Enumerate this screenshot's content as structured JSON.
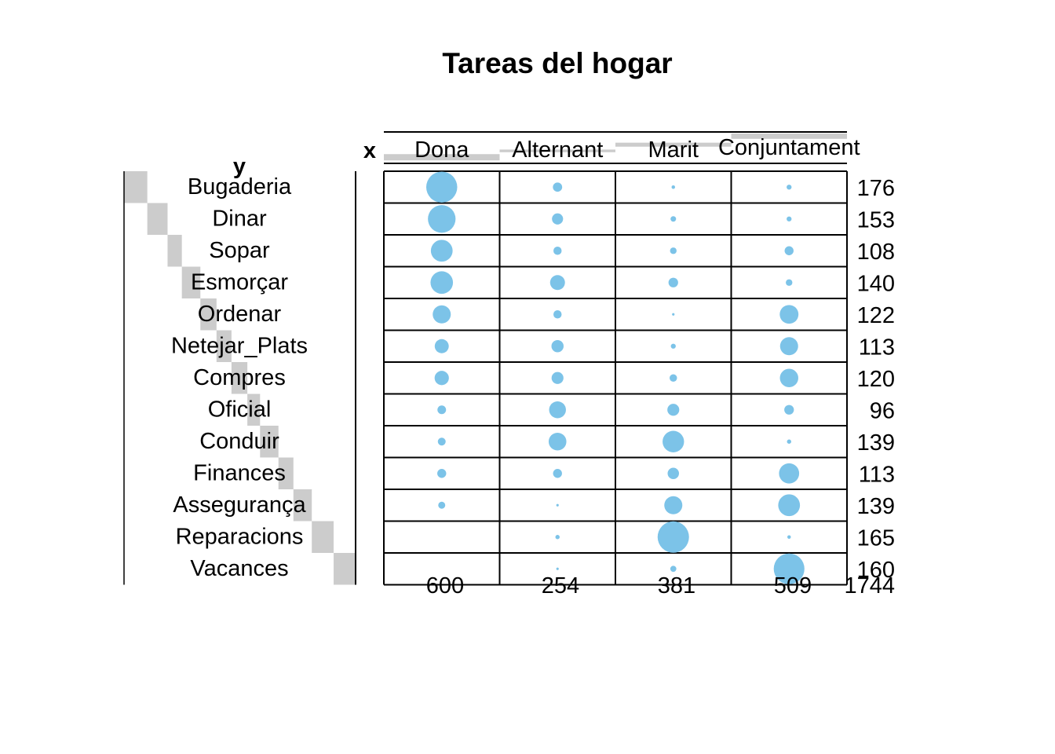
{
  "chart_data": {
    "type": "balloon",
    "title": "Tareas del hogar",
    "xlabel": "x",
    "ylabel": "y",
    "columns": [
      "Dona",
      "Alternant",
      "Marit",
      "Conjuntament"
    ],
    "rows": [
      "Bugaderia",
      "Dinar",
      "Sopar",
      "Esmorçar",
      "Ordenar",
      "Netejar_Plats",
      "Compres",
      "Oficial",
      "Conduir",
      "Finances",
      "Assegurança",
      "Reparacions",
      "Vacances"
    ],
    "values": [
      [
        156,
        14,
        2,
        4
      ],
      [
        124,
        20,
        5,
        4
      ],
      [
        77,
        11,
        7,
        13
      ],
      [
        82,
        36,
        15,
        7
      ],
      [
        53,
        11,
        1,
        57
      ],
      [
        32,
        24,
        4,
        53
      ],
      [
        33,
        23,
        9,
        55
      ],
      [
        12,
        46,
        23,
        15
      ],
      [
        10,
        51,
        75,
        3
      ],
      [
        13,
        13,
        21,
        66
      ],
      [
        8,
        1,
        53,
        77
      ],
      [
        0,
        3,
        160,
        2
      ],
      [
        0,
        1,
        6,
        153
      ]
    ],
    "row_totals": [
      "176",
      "153",
      "108",
      "140",
      "122",
      "113",
      "120",
      "96",
      "139",
      "113",
      "139",
      "165",
      "160"
    ],
    "column_totals": [
      "600",
      "254",
      "381",
      "509"
    ],
    "grand_total": "1744",
    "dot_color": "#7CC3E8",
    "margin_bar_color": "#CCCCCC",
    "grid_color": "#000000"
  }
}
